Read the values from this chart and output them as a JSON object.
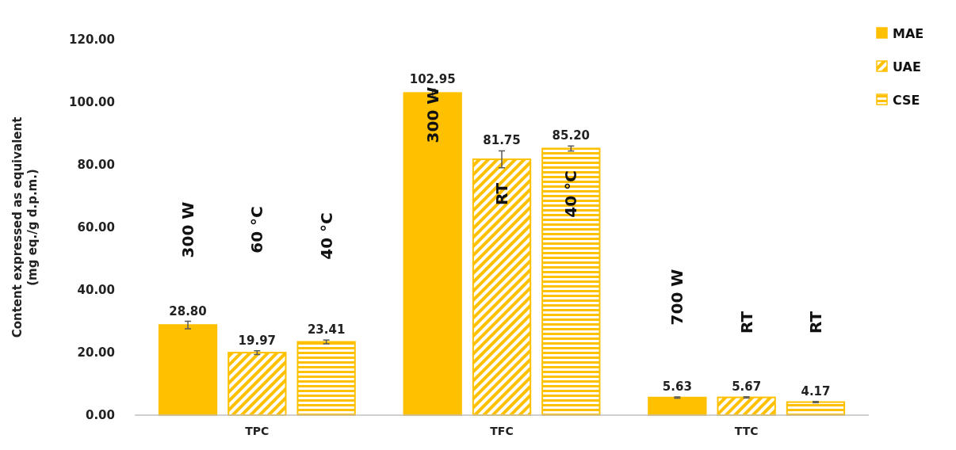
{
  "chart_data": {
    "type": "bar",
    "ylabel": "Content expressed as equivalent\n(mg eq./g d.p.m.)",
    "categories": [
      "TPC",
      "TFC",
      "TTC"
    ],
    "series": [
      {
        "name": "MAE",
        "color": "#ffc000",
        "values": [
          28.8,
          102.95,
          5.63
        ],
        "errors": [
          1.2,
          1.2,
          0.2
        ],
        "value_labels": [
          "28.80",
          "102.95",
          "5.63"
        ]
      },
      {
        "name": "UAE",
        "color": "#ffc000",
        "values": [
          19.97,
          81.75,
          5.67
        ],
        "errors": [
          0.6,
          2.7,
          0.2
        ],
        "value_labels": [
          "19.97",
          "81.75",
          "5.67"
        ]
      },
      {
        "name": "CSE",
        "color": "#ffc000",
        "values": [
          23.41,
          85.2,
          4.17
        ],
        "errors": [
          0.6,
          0.8,
          0.2
        ],
        "value_labels": [
          "23.41",
          "85.20",
          "4.17"
        ]
      }
    ],
    "ylim": [
      0,
      120
    ],
    "yticks": [
      {
        "value": 0,
        "label": "0.00"
      },
      {
        "value": 20,
        "label": "20.00"
      },
      {
        "value": 40,
        "label": "40.00"
      },
      {
        "value": 60,
        "label": "60.00"
      },
      {
        "value": 80,
        "label": "80.00"
      },
      {
        "value": 100,
        "label": "100.00"
      },
      {
        "value": 120,
        "label": "120.00"
      }
    ],
    "grid": false,
    "legend": "top right",
    "annotations": [
      "300 W",
      "60 °C",
      "40 °C",
      "300 W",
      "RT",
      "40 °C",
      "700 W",
      "RT",
      "RT"
    ]
  }
}
